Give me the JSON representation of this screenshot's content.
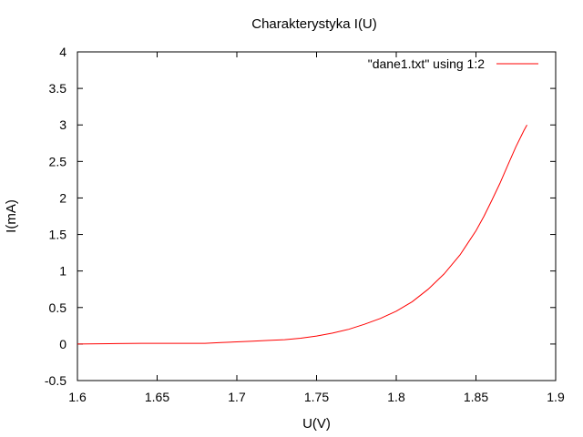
{
  "chart_data": {
    "type": "line",
    "title": "Charakterystyka I(U)",
    "xlabel": "U(V)",
    "ylabel": "I(mA)",
    "xlim": [
      1.6,
      1.9
    ],
    "ylim": [
      -0.5,
      4
    ],
    "x_ticks": [
      1.6,
      1.65,
      1.7,
      1.75,
      1.8,
      1.85,
      1.9
    ],
    "y_ticks": [
      -0.5,
      0,
      0.5,
      1,
      1.5,
      2,
      2.5,
      3,
      3.5,
      4
    ],
    "x_tick_labels": [
      "1.6",
      "1.65",
      "1.7",
      "1.75",
      "1.8",
      "1.85",
      "1.9"
    ],
    "y_tick_labels": [
      "-0.5",
      "0",
      "0.5",
      "1",
      "1.5",
      "2",
      "2.5",
      "3",
      "3.5",
      "4"
    ],
    "grid": false,
    "legend_position": "top-right",
    "series": [
      {
        "name": "\"dane1.txt\" using 1:2",
        "color": "#ff0000",
        "x": [
          1.6,
          1.62,
          1.64,
          1.66,
          1.68,
          1.69,
          1.7,
          1.71,
          1.72,
          1.73,
          1.74,
          1.75,
          1.76,
          1.77,
          1.78,
          1.79,
          1.8,
          1.81,
          1.82,
          1.83,
          1.84,
          1.85,
          1.855,
          1.86,
          1.865,
          1.87,
          1.875,
          1.88,
          1.882
        ],
        "y": [
          0.0,
          0.005,
          0.01,
          0.01,
          0.01,
          0.02,
          0.03,
          0.04,
          0.05,
          0.06,
          0.08,
          0.11,
          0.15,
          0.2,
          0.27,
          0.35,
          0.45,
          0.58,
          0.75,
          0.96,
          1.22,
          1.55,
          1.75,
          1.97,
          2.2,
          2.45,
          2.7,
          2.92,
          3.0
        ]
      }
    ]
  }
}
